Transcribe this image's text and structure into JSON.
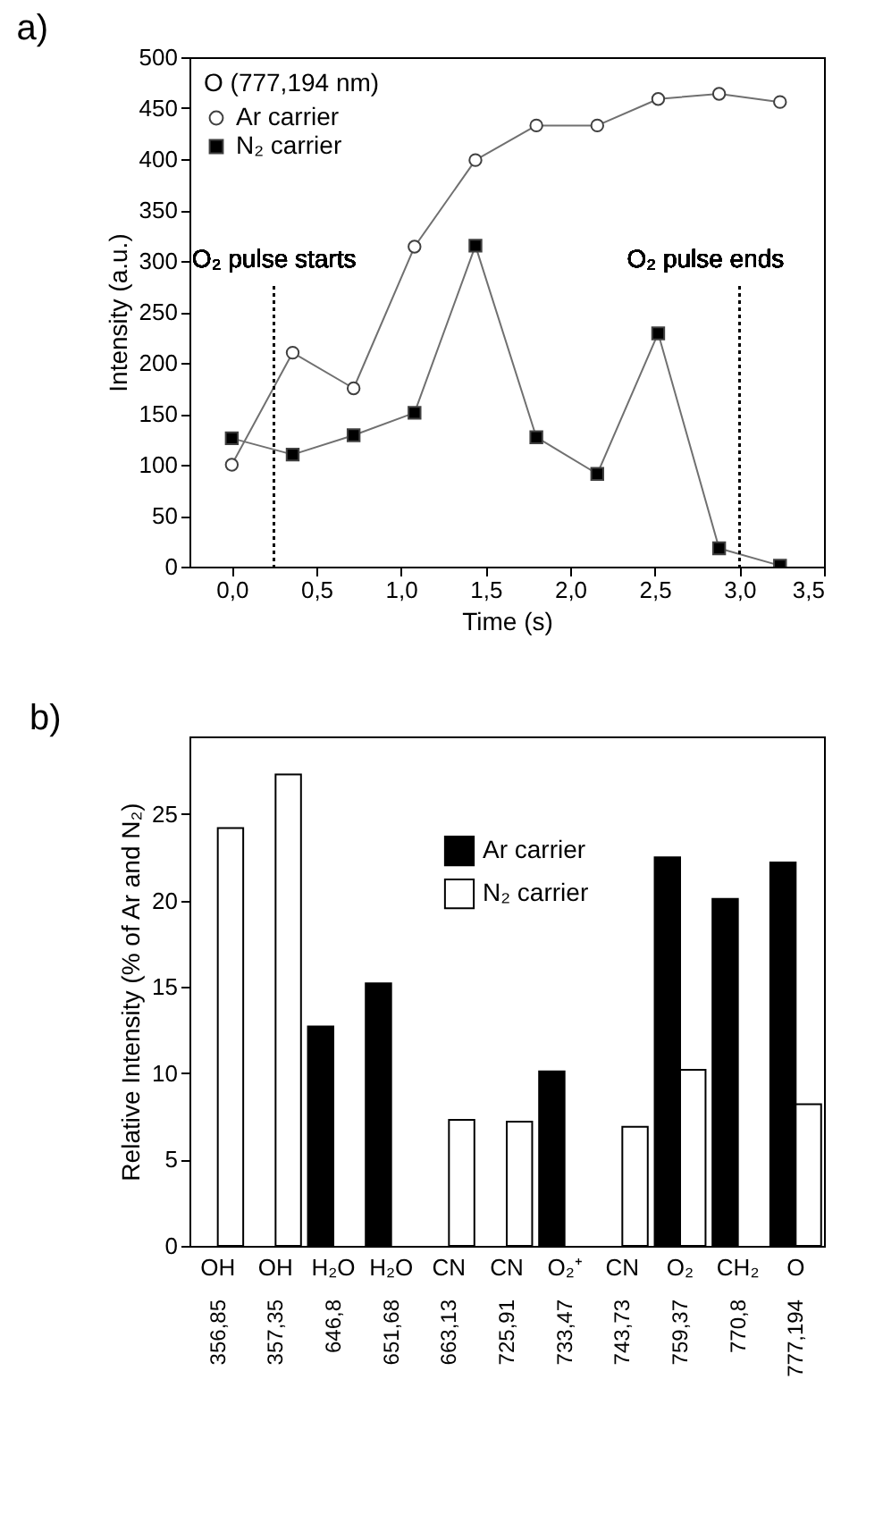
{
  "chart_data": [
    {
      "type": "line",
      "title": "a)",
      "xlabel": "Time (s)",
      "ylabel": "Intensity (a.u.)",
      "legend_title": "O (777,194 nm)",
      "legend": "top left",
      "grid": false,
      "x": [
        0,
        0.36,
        0.72,
        1.08,
        1.44,
        1.8,
        2.16,
        2.52,
        2.88,
        3.24
      ],
      "series": [
        {
          "name": "Ar carrier",
          "color": "#ffffff",
          "marker": "circle",
          "values": [
            100,
            210,
            175,
            314,
            399,
            433,
            433,
            459,
            464,
            456
          ]
        },
        {
          "name": "N₂ carrier",
          "color": "#000000",
          "marker": "square",
          "values": [
            126,
            110,
            129,
            151,
            315,
            127,
            91,
            229,
            18,
            1
          ]
        }
      ],
      "xlim": [
        -0.25,
        3.5
      ],
      "ylim": [
        0,
        500
      ],
      "xticks": [
        {
          "value": 0,
          "label": "0,0"
        },
        {
          "value": 0.5,
          "label": "0,5"
        },
        {
          "value": 1,
          "label": "1,0"
        },
        {
          "value": 1.5,
          "label": "1,5"
        },
        {
          "value": 2,
          "label": "2,0"
        },
        {
          "value": 2.5,
          "label": "2,5"
        },
        {
          "value": 3,
          "label": "3,0"
        },
        {
          "value": 3.5,
          "label": "3,5"
        }
      ],
      "yticks": [
        0,
        50,
        100,
        150,
        200,
        250,
        300,
        350,
        400,
        450,
        500
      ],
      "ref_lines": [
        {
          "axis": "x",
          "value": 0.25,
          "label": "O₂ pulse starts",
          "line_style": "dotted"
        },
        {
          "axis": "x",
          "value": 3.0,
          "label": "O₂ pulse ends",
          "line_style": "dotted"
        }
      ]
    },
    {
      "type": "bar",
      "title": "b)",
      "ylabel": "Relative Intensity (% of Ar and N₂)",
      "legend": "top",
      "grid": false,
      "categories": [
        "OH",
        "OH",
        "H₂O",
        "H₂O",
        "CN",
        "CN",
        "O₂⁺",
        "CN",
        "O₂",
        "CH₂",
        "O"
      ],
      "annotations": [
        "356,85",
        "357,35",
        "646,8",
        "651,68",
        "663,13",
        "725,91",
        "733,47",
        "743,73",
        "759,37",
        "770,8",
        "777,194"
      ],
      "series": [
        {
          "name": "Ar carrier",
          "color": "#000000",
          "values": [
            null,
            null,
            12.7,
            15.2,
            null,
            null,
            10.1,
            null,
            22.5,
            20.1,
            22.2
          ]
        },
        {
          "name": "N₂ carrier",
          "color": "#ffffff",
          "values": [
            24.2,
            27.3,
            null,
            null,
            7.3,
            7.2,
            null,
            6.9,
            10.2,
            null,
            8.2
          ]
        }
      ],
      "ylim": [
        0,
        29.5
      ],
      "yticks": [
        0,
        5,
        10,
        15,
        20,
        25
      ]
    }
  ]
}
